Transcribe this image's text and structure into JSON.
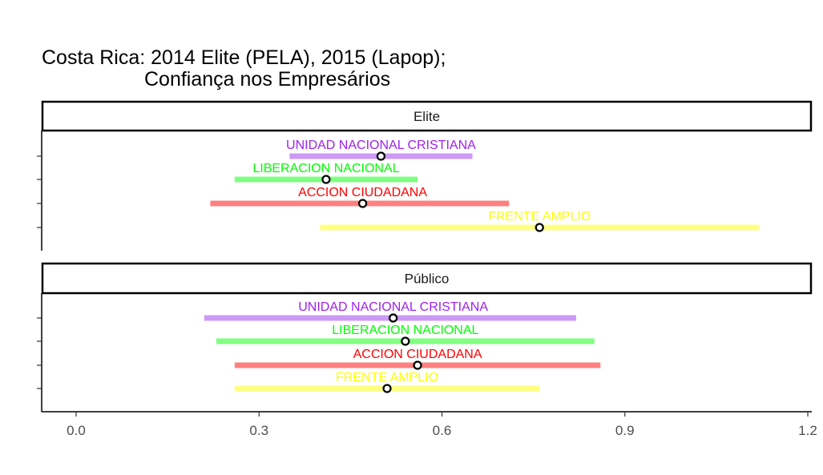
{
  "title_line1": "Costa Rica: 2014 Elite (PELA), 2015 (Lapop);",
  "title_line2": "Confiança nos Empresários",
  "colors": {
    "UNIDAD NACIONAL CRISTIANA": {
      "text": "#a020f0",
      "bar": "#cc99f5"
    },
    "LIBERACION NACIONAL": {
      "text": "#00ff00",
      "bar": "#80ff80"
    },
    "ACCION CIUDADANA": {
      "text": "#ff0000",
      "bar": "#ff8080"
    },
    "FRENTE AMPLIO": {
      "text": "#ffff00",
      "bar": "#ffff80"
    }
  },
  "chart_data": {
    "type": "scatter",
    "subtype": "dot-with-interval",
    "xlim": [
      -0.06,
      1.21
    ],
    "x_ticks": [
      "0.0",
      "0.3",
      "0.6",
      "0.9",
      "1.2"
    ],
    "x_tick_values": [
      0.0,
      0.3,
      0.6,
      0.9,
      1.2
    ],
    "grid": false,
    "panels": [
      {
        "label": "Elite",
        "series": [
          {
            "name": "UNIDAD NACIONAL CRISTIANA",
            "point": 0.5,
            "low": 0.35,
            "high": 0.65
          },
          {
            "name": "LIBERACION NACIONAL",
            "point": 0.41,
            "low": 0.26,
            "high": 0.56
          },
          {
            "name": "ACCION CIUDADANA",
            "point": 0.47,
            "low": 0.22,
            "high": 0.71
          },
          {
            "name": "FRENTE AMPLIO",
            "point": 0.76,
            "low": 0.4,
            "high": 1.12
          }
        ]
      },
      {
        "label": "Público",
        "series": [
          {
            "name": "UNIDAD NACIONAL CRISTIANA",
            "point": 0.52,
            "low": 0.21,
            "high": 0.82
          },
          {
            "name": "LIBERACION NACIONAL",
            "point": 0.54,
            "low": 0.23,
            "high": 0.85
          },
          {
            "name": "ACCION CIUDADANA",
            "point": 0.56,
            "low": 0.26,
            "high": 0.86
          },
          {
            "name": "FRENTE AMPLIO",
            "point": 0.51,
            "low": 0.26,
            "high": 0.76
          }
        ]
      }
    ]
  }
}
